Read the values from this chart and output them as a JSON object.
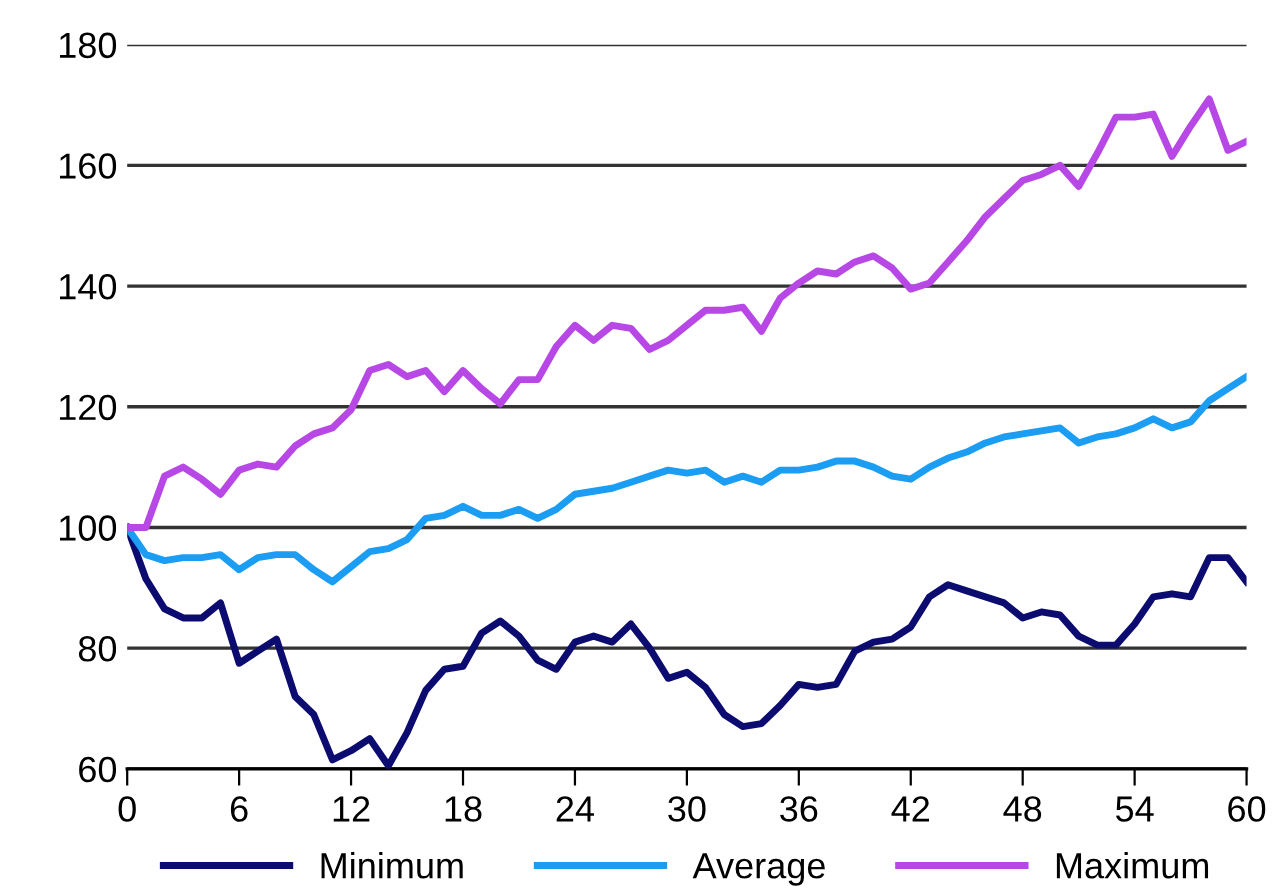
{
  "chart_data": {
    "type": "line",
    "x": [
      0,
      1,
      2,
      3,
      4,
      5,
      6,
      7,
      8,
      9,
      10,
      11,
      12,
      13,
      14,
      15,
      16,
      17,
      18,
      19,
      20,
      21,
      22,
      23,
      24,
      25,
      26,
      27,
      28,
      29,
      30,
      31,
      32,
      33,
      34,
      35,
      36,
      37,
      38,
      39,
      40,
      41,
      42,
      43,
      44,
      45,
      46,
      47,
      48,
      49,
      50,
      51,
      52,
      53,
      54,
      55,
      56,
      57,
      58,
      59,
      60
    ],
    "series": [
      {
        "name": "Minimum",
        "color": "#0c0c70",
        "values": [
          100,
          91.5,
          86.5,
          85,
          85,
          87.5,
          77.5,
          79.5,
          81.5,
          72,
          69,
          61.5,
          63,
          65,
          60.5,
          66,
          73,
          76.5,
          77,
          82.5,
          84.5,
          82,
          78,
          76.5,
          81,
          82,
          81,
          84,
          80,
          75,
          76,
          73.5,
          69,
          67,
          67.5,
          70.5,
          74,
          73.5,
          74,
          79.5,
          81,
          81.5,
          83.5,
          88.5,
          90.5,
          89.5,
          88.5,
          87.5,
          85,
          86,
          85.5,
          82,
          80.5,
          80.5,
          84,
          88.5,
          89,
          88.5,
          95,
          95,
          91
        ]
      },
      {
        "name": "Average",
        "color": "#1a9df2",
        "values": [
          100,
          95.5,
          94.5,
          95,
          95,
          95.5,
          93,
          95,
          95.5,
          95.5,
          93,
          91,
          93.5,
          96,
          96.5,
          98,
          101.5,
          102,
          103.5,
          102,
          102,
          103,
          101.5,
          103,
          105.5,
          106,
          106.5,
          107.5,
          108.5,
          109.5,
          109,
          109.5,
          107.5,
          108.5,
          107.5,
          109.5,
          109.5,
          110,
          111,
          111,
          110,
          108.5,
          108,
          110,
          111.5,
          112.5,
          114,
          115,
          115.5,
          116,
          116.5,
          114,
          115,
          115.5,
          116.5,
          118,
          116.5,
          117.5,
          121,
          123,
          125
        ]
      },
      {
        "name": "Maximum",
        "color": "#b848e6",
        "values": [
          100,
          100,
          108.5,
          110,
          108,
          105.5,
          109.5,
          110.5,
          110,
          113.5,
          115.5,
          116.5,
          119.5,
          126,
          127,
          125,
          126,
          122.5,
          126,
          123,
          120.5,
          124.5,
          124.5,
          130,
          133.5,
          131,
          133.5,
          133,
          129.5,
          131,
          133.5,
          136,
          136,
          136.5,
          132.5,
          138,
          140.5,
          142.5,
          142,
          144,
          145,
          143,
          139.5,
          140.5,
          144,
          147.5,
          151.5,
          154.5,
          157.5,
          158.5,
          160,
          156.5,
          162,
          168,
          168,
          168.5,
          161.5,
          166.5,
          171,
          162.5,
          164
        ]
      }
    ],
    "xlim": [
      0,
      60
    ],
    "xticks": [
      0,
      6,
      12,
      18,
      24,
      30,
      36,
      42,
      48,
      54,
      60
    ],
    "ylim": [
      60,
      180
    ],
    "yticks": [
      60,
      80,
      100,
      120,
      140,
      160,
      180
    ],
    "grid": "y",
    "legend": "bottom",
    "marker": "none",
    "line_style": "solid"
  }
}
